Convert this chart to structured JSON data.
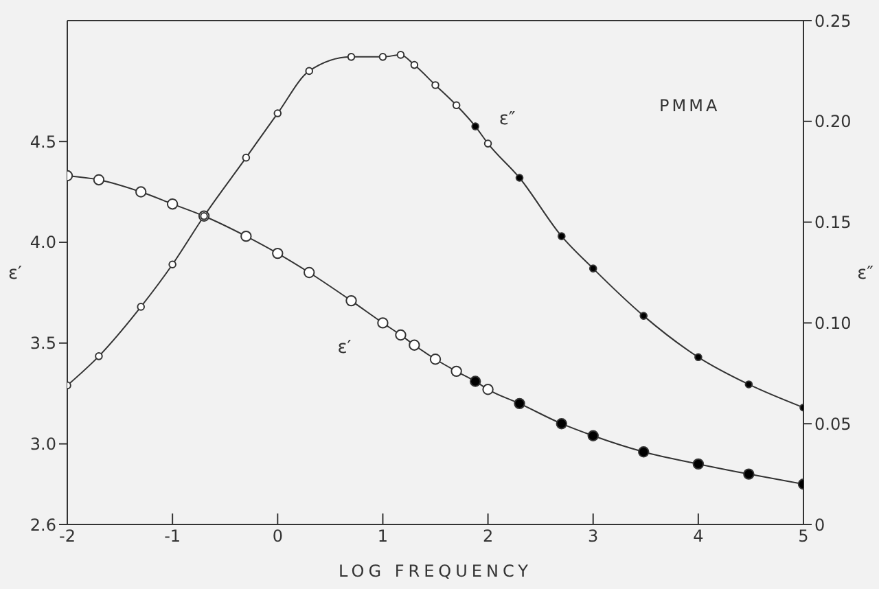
{
  "chart_data": {
    "type": "line",
    "xlabel": "LOG FREQUENCY",
    "ylabel": "ε′",
    "y2label": "ε″",
    "annotations": [
      "PMMA"
    ],
    "x": [
      -2,
      -1.7,
      -1.3,
      -1,
      -0.7,
      -0.3,
      0,
      0.3,
      0.7,
      1,
      1.17,
      1.3,
      1.5,
      1.7,
      1.88,
      2,
      2.3,
      2.7,
      3,
      3.48,
      4,
      4.48,
      5
    ],
    "series": [
      {
        "name": "ε′",
        "color": "#333333",
        "values": [
          4.33,
          4.31,
          4.25,
          4.19,
          4.13,
          4.03,
          3.945,
          3.85,
          3.71,
          3.6,
          3.54,
          3.49,
          3.42,
          3.36,
          3.31,
          3.27,
          3.2,
          3.1,
          3.04,
          2.96,
          2.9,
          2.85,
          2.8
        ],
        "colors": [
          "#ffffff",
          "#ffffff",
          "#ffffff",
          "#ffffff",
          "#ffffff",
          "#ffffff",
          "#ffffff",
          "#ffffff",
          "#ffffff",
          "#ffffff",
          "#ffffff",
          "#ffffff",
          "#ffffff",
          "#ffffff",
          "#000000",
          "#ffffff",
          "#000000",
          "#000000",
          "#000000",
          "#000000",
          "#000000",
          "#000000",
          "#000000"
        ]
      },
      {
        "name": "ε″",
        "color": "#333333",
        "axis": "y2",
        "values": [
          0.069,
          0.0835,
          0.108,
          0.129,
          0.153,
          0.182,
          0.204,
          0.225,
          0.232,
          0.232,
          0.233,
          0.228,
          0.218,
          0.208,
          0.1975,
          0.189,
          0.172,
          0.143,
          0.127,
          0.1035,
          0.083,
          0.0695,
          0.058
        ],
        "colors": [
          "#ffffff",
          "#ffffff",
          "#ffffff",
          "#ffffff",
          "#ffffff",
          "#ffffff",
          "#ffffff",
          "#ffffff",
          "#ffffff",
          "#ffffff",
          "#ffffff",
          "#ffffff",
          "#ffffff",
          "#ffffff",
          "#000000",
          "#ffffff",
          "#000000",
          "#000000",
          "#000000",
          "#000000",
          "#000000",
          "#000000",
          "#000000"
        ]
      }
    ],
    "xlim": [
      -2,
      5
    ],
    "xticks": [
      -2,
      -1,
      0,
      1,
      2,
      3,
      4,
      5
    ],
    "ylim": [
      2.6,
      5.1
    ],
    "yticks": [
      2.6,
      {
        "value": 3,
        "label": "3.0"
      },
      3.5,
      {
        "value": 4,
        "label": "4.0"
      },
      4.5
    ],
    "y2lim": [
      0,
      0.25
    ],
    "y2ticks": [
      0,
      0.05,
      {
        "value": 0.1,
        "label": "0.10"
      },
      0.15,
      {
        "value": 0.2,
        "label": "0.20"
      },
      0.25
    ],
    "grid": false,
    "legend": false,
    "marker": "circle"
  }
}
